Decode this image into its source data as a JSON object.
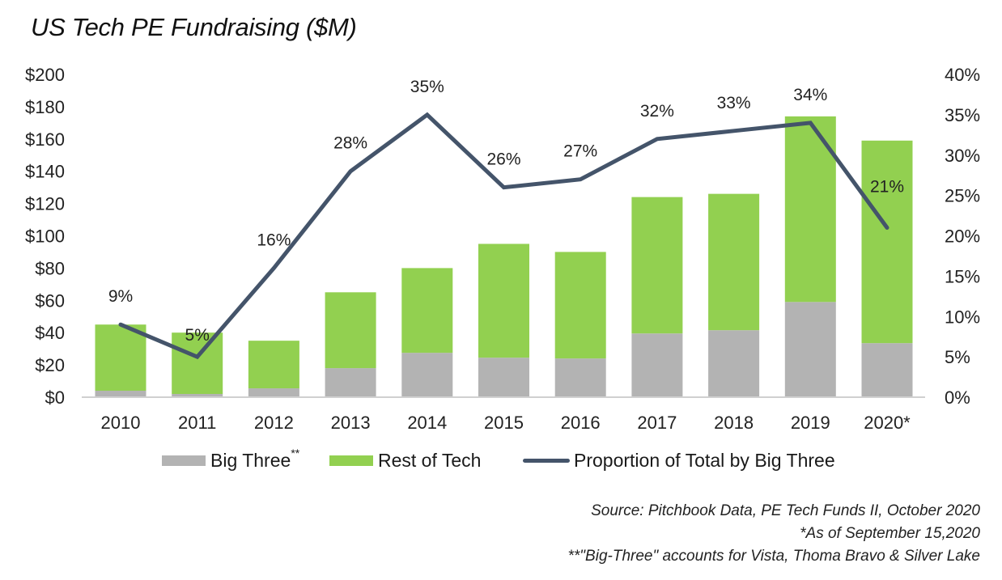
{
  "title": "US Tech PE Fundraising ($M)",
  "chart_data": {
    "type": "bar",
    "stacked": true,
    "title": "US Tech PE Fundraising ($M)",
    "xlabel": "",
    "ylabel": "",
    "categories": [
      "2010",
      "2011",
      "2012",
      "2013",
      "2014",
      "2015",
      "2016",
      "2017",
      "2018",
      "2019",
      "2020*"
    ],
    "series": [
      {
        "name": "Big Three",
        "type": "bar",
        "axis": "left",
        "color": "#b3b3b3",
        "values": [
          4,
          2,
          5.5,
          18,
          27.5,
          24.5,
          24,
          39.5,
          41.5,
          59,
          33.5
        ]
      },
      {
        "name": "Rest of Tech",
        "type": "bar",
        "axis": "left",
        "color": "#92d050",
        "values": [
          41,
          38,
          29.5,
          47,
          52.5,
          70.5,
          66,
          84.5,
          84.5,
          115,
          125.5
        ]
      },
      {
        "name": "Proportion of Total by Big Three",
        "type": "line",
        "axis": "right",
        "color": "#44546a",
        "values": [
          9,
          5,
          16,
          28,
          35,
          26,
          27,
          32,
          33,
          34,
          21
        ],
        "labels": [
          "9%",
          "5%",
          "16%",
          "28%",
          "35%",
          "26%",
          "27%",
          "32%",
          "33%",
          "34%",
          "21%"
        ]
      }
    ],
    "ylim": [
      0,
      200
    ],
    "y2lim": [
      0,
      40
    ],
    "yticks": [
      "$0",
      "$20",
      "$40",
      "$60",
      "$80",
      "$100",
      "$120",
      "$140",
      "$160",
      "$180",
      "$200"
    ],
    "ytick_values": [
      0,
      20,
      40,
      60,
      80,
      100,
      120,
      140,
      160,
      180,
      200
    ],
    "y2ticks": [
      "0%",
      "5%",
      "10%",
      "15%",
      "20%",
      "25%",
      "30%",
      "35%",
      "40%"
    ],
    "y2tick_values": [
      0,
      5,
      10,
      15,
      20,
      25,
      30,
      35,
      40
    ],
    "grid": false,
    "legend_position": "bottom"
  },
  "legend": {
    "big_three": "Big Three",
    "big_three_mark": "**",
    "rest_of_tech": "Rest of Tech",
    "proportion": "Proportion of Total by Big Three"
  },
  "notes": {
    "source": "Source: Pitchbook Data, PE Tech Funds II, October 2020",
    "asof": "*As of September 15,2020",
    "bigthree": "**\"Big-Three\" accounts for Vista, Thoma Bravo & Silver Lake"
  }
}
